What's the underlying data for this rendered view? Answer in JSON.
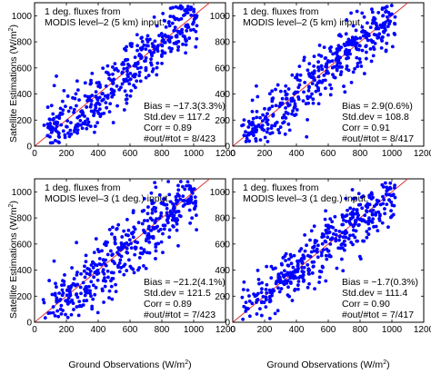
{
  "figure": {
    "xlabel": "Ground Observations (W/m",
    "ylabel": "Satellite Estimations (W/m",
    "unit_superscript": "2",
    "unit_close": ")"
  },
  "chart_data": [
    {
      "type": "scatter",
      "panel": "top-left",
      "note_lines": [
        "1 deg. fluxes from",
        "MODIS level–2 (5 km) input."
      ],
      "stats": [
        "Bias = −17.3(3.3%)",
        "Std.dev = 117.2",
        "Corr = 0.89",
        "#out/#tot = 8/423"
      ],
      "xlim": [
        0,
        1200
      ],
      "ylim": [
        0,
        1100
      ],
      "xticks": [
        0,
        200,
        400,
        600,
        800,
        1000,
        1200
      ],
      "yticks": [
        0,
        200,
        400,
        600,
        800,
        1000
      ],
      "identity_line": true,
      "marker_color": "#0000ff",
      "line_color": "#e03030",
      "n_points": 423,
      "bias": -17.3,
      "std": 117.2,
      "seed": 11,
      "points": [
        [
          60,
          160
        ],
        [
          120,
          210
        ],
        [
          200,
          150
        ],
        [
          250,
          280
        ],
        [
          300,
          240
        ],
        [
          350,
          380
        ],
        [
          400,
          330
        ],
        [
          450,
          460
        ],
        [
          500,
          420
        ],
        [
          550,
          560
        ],
        [
          600,
          510
        ],
        [
          650,
          640
        ],
        [
          700,
          600
        ],
        [
          750,
          720
        ],
        [
          800,
          700
        ],
        [
          850,
          800
        ],
        [
          900,
          880
        ],
        [
          950,
          920
        ],
        [
          1000,
          950
        ],
        [
          1020,
          1000
        ]
      ]
    },
    {
      "type": "scatter",
      "panel": "top-right",
      "note_lines": [
        "1 deg. fluxes from",
        "MODIS level–2 (5 km) input."
      ],
      "stats": [
        "Bias = 2.9(0.6%)",
        "Std.dev = 108.8",
        "Corr = 0.91",
        "#out/#tot = 8/417"
      ],
      "xlim": [
        0,
        1200
      ],
      "ylim": [
        0,
        1100
      ],
      "xticks": [
        0,
        200,
        400,
        600,
        800,
        1000,
        1200
      ],
      "yticks": [
        0,
        200,
        400,
        600,
        800,
        1000
      ],
      "identity_line": true,
      "marker_color": "#0000ff",
      "line_color": "#e03030",
      "n_points": 417,
      "bias": 2.9,
      "std": 108.8,
      "seed": 23,
      "points": [
        [
          80,
          110
        ],
        [
          150,
          220
        ],
        [
          220,
          200
        ],
        [
          300,
          330
        ],
        [
          350,
          310
        ],
        [
          420,
          470
        ],
        [
          480,
          450
        ],
        [
          540,
          580
        ],
        [
          600,
          560
        ],
        [
          660,
          690
        ],
        [
          720,
          700
        ],
        [
          780,
          790
        ],
        [
          840,
          830
        ],
        [
          900,
          900
        ],
        [
          960,
          950
        ],
        [
          1020,
          990
        ]
      ]
    },
    {
      "type": "scatter",
      "panel": "bottom-left",
      "note_lines": [
        "1 deg. fluxes from",
        "MODIS level–3 (1 deg.) input."
      ],
      "stats": [
        "Bias = −21.2(4.1%)",
        "Std.dev = 121.5",
        "Corr = 0.89",
        "#out/#tot = 7/423"
      ],
      "xlim": [
        0,
        1200
      ],
      "ylim": [
        0,
        1100
      ],
      "xticks": [
        0,
        200,
        400,
        600,
        800,
        1000,
        1200
      ],
      "yticks": [
        0,
        200,
        400,
        600,
        800,
        1000
      ],
      "identity_line": true,
      "marker_color": "#0000ff",
      "line_color": "#e03030",
      "n_points": 423,
      "bias": -21.2,
      "std": 121.5,
      "seed": 37,
      "points": [
        [
          60,
          150
        ],
        [
          130,
          220
        ],
        [
          210,
          140
        ],
        [
          270,
          290
        ],
        [
          330,
          250
        ],
        [
          390,
          390
        ],
        [
          440,
          340
        ],
        [
          490,
          470
        ],
        [
          560,
          430
        ],
        [
          610,
          570
        ],
        [
          670,
          530
        ],
        [
          720,
          660
        ],
        [
          780,
          700
        ],
        [
          840,
          800
        ],
        [
          900,
          850
        ],
        [
          960,
          930
        ],
        [
          1010,
          960
        ]
      ]
    },
    {
      "type": "scatter",
      "panel": "bottom-right",
      "note_lines": [
        "1 deg. fluxes from",
        "MODIS level–3 (1 deg.) input."
      ],
      "stats": [
        "Bias = −1.7(0.3%)",
        "Std.dev = 111.4",
        "Corr = 0.90",
        "#out/#tot = 7/417"
      ],
      "xlim": [
        0,
        1200
      ],
      "ylim": [
        0,
        1100
      ],
      "xticks": [
        0,
        200,
        400,
        600,
        800,
        1000,
        1200
      ],
      "yticks": [
        0,
        200,
        400,
        600,
        800,
        1000
      ],
      "identity_line": true,
      "marker_color": "#0000ff",
      "line_color": "#e03030",
      "n_points": 417,
      "bias": -1.7,
      "std": 111.4,
      "seed": 53,
      "points": [
        [
          70,
          120
        ],
        [
          140,
          200
        ],
        [
          210,
          180
        ],
        [
          280,
          310
        ],
        [
          340,
          300
        ],
        [
          410,
          440
        ],
        [
          470,
          440
        ],
        [
          530,
          560
        ],
        [
          590,
          560
        ],
        [
          650,
          670
        ],
        [
          710,
          690
        ],
        [
          770,
          780
        ],
        [
          830,
          820
        ],
        [
          890,
          890
        ],
        [
          950,
          940
        ],
        [
          1010,
          980
        ]
      ]
    }
  ]
}
